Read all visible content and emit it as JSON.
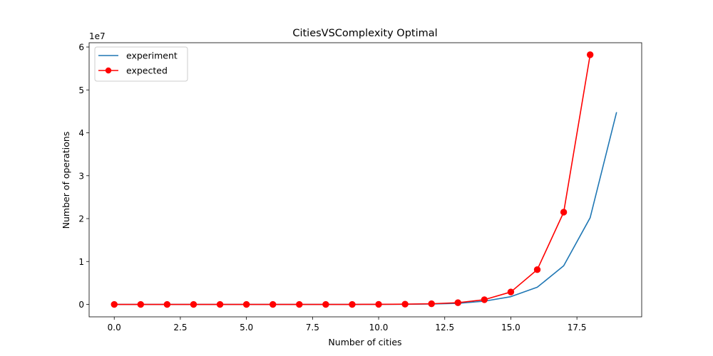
{
  "chart_data": {
    "type": "line",
    "title": "CitiesVSComplexity Optimal",
    "xlabel": "Number of cities",
    "ylabel": "Number of operations",
    "y_offset_label": "1e7",
    "xlim": [
      -0.95,
      19.95
    ],
    "ylim": [
      -2900000,
      61000000
    ],
    "x_ticks": [
      0,
      2.5,
      5,
      7.5,
      10,
      12.5,
      15,
      17.5
    ],
    "x_tick_labels": [
      "0.0",
      "2.5",
      "5.0",
      "7.5",
      "10.0",
      "12.5",
      "15.0",
      "17.5"
    ],
    "y_ticks": [
      0,
      10000000,
      20000000,
      30000000,
      40000000,
      50000000,
      60000000
    ],
    "y_tick_labels": [
      "0",
      "1",
      "2",
      "3",
      "4",
      "5",
      "6"
    ],
    "grid": false,
    "legend_position": "top-left",
    "series": [
      {
        "name": "experiment",
        "color": "#1f77b4",
        "marker": "none",
        "x": [
          0,
          1,
          2,
          3,
          4,
          5,
          6,
          7,
          8,
          9,
          10,
          11,
          12,
          13,
          14,
          15,
          16,
          17,
          18,
          19
        ],
        "y": [
          0,
          0,
          0,
          0,
          0,
          0,
          0,
          0,
          0,
          0,
          10000,
          30000,
          100000,
          250000,
          750000,
          1800000,
          4000000,
          9000000,
          20200000,
          44800000
        ]
      },
      {
        "name": "expected",
        "color": "#ff0000",
        "marker": "circle",
        "x": [
          0,
          1,
          2,
          3,
          4,
          5,
          6,
          7,
          8,
          9,
          10,
          11,
          12,
          13,
          14,
          15,
          16,
          17,
          18
        ],
        "y": [
          0,
          0,
          0,
          0,
          0,
          0,
          0,
          0,
          0,
          0,
          20000,
          50000,
          150000,
          400000,
          1100000,
          2900000,
          8100000,
          21500000,
          58200000
        ]
      }
    ]
  }
}
